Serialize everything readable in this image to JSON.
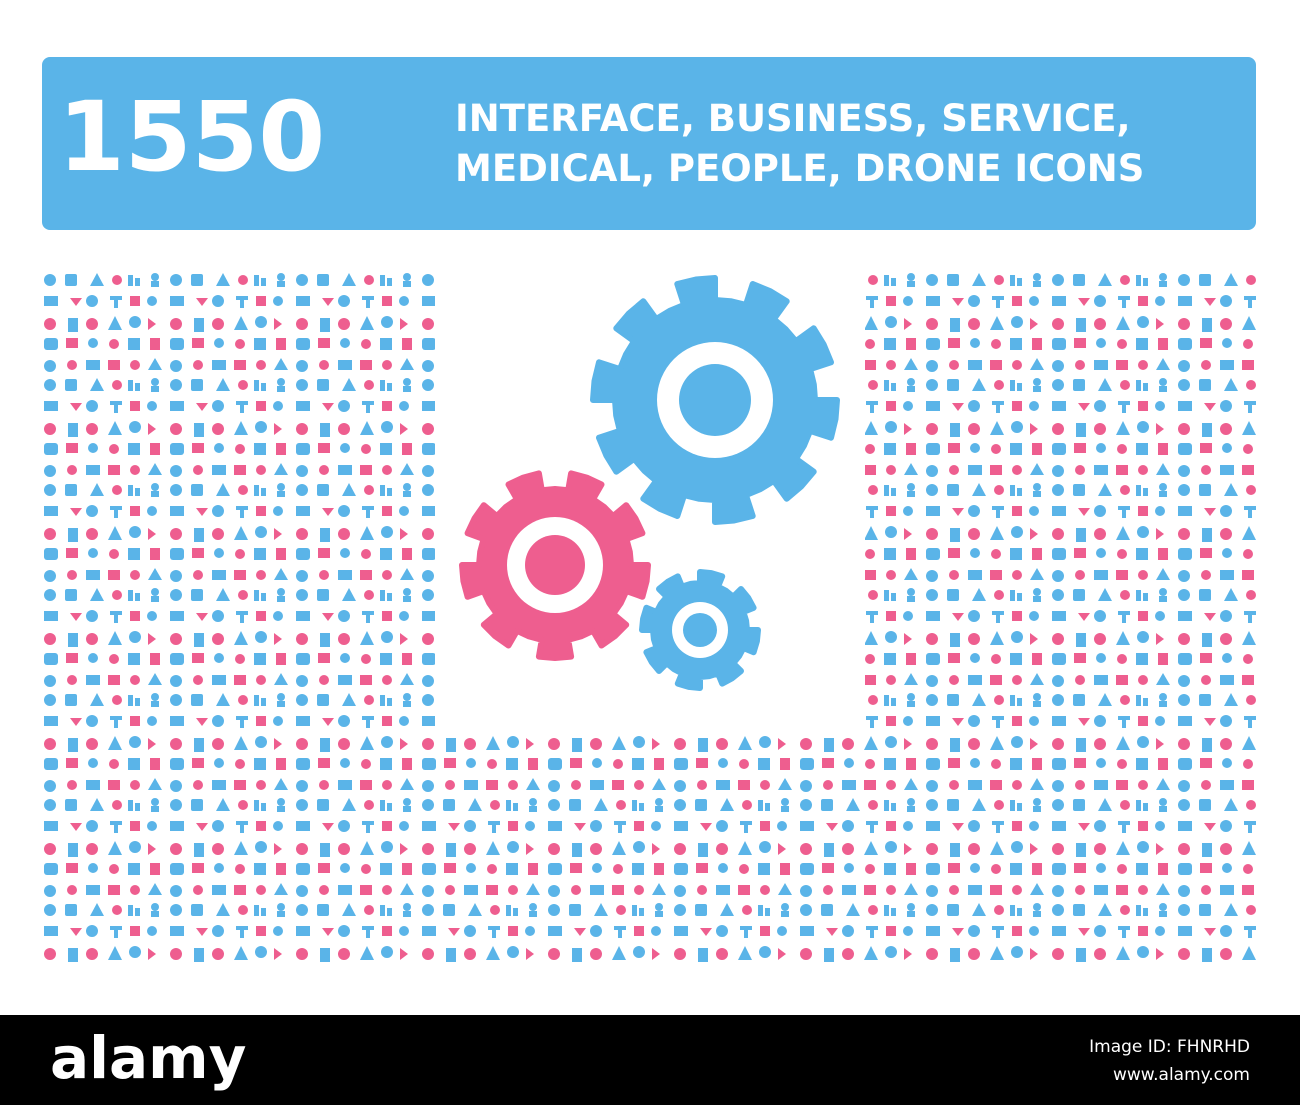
{
  "banner": {
    "count": "1550",
    "line1": "INTERFACE, BUSINESS, SERVICE,",
    "line2": "MEDICAL, PEOPLE, DRONE ICONS"
  },
  "footer": {
    "brand": "alamy",
    "image_id": "Image ID: FHNRHD",
    "url": "www.alamy.com"
  }
}
